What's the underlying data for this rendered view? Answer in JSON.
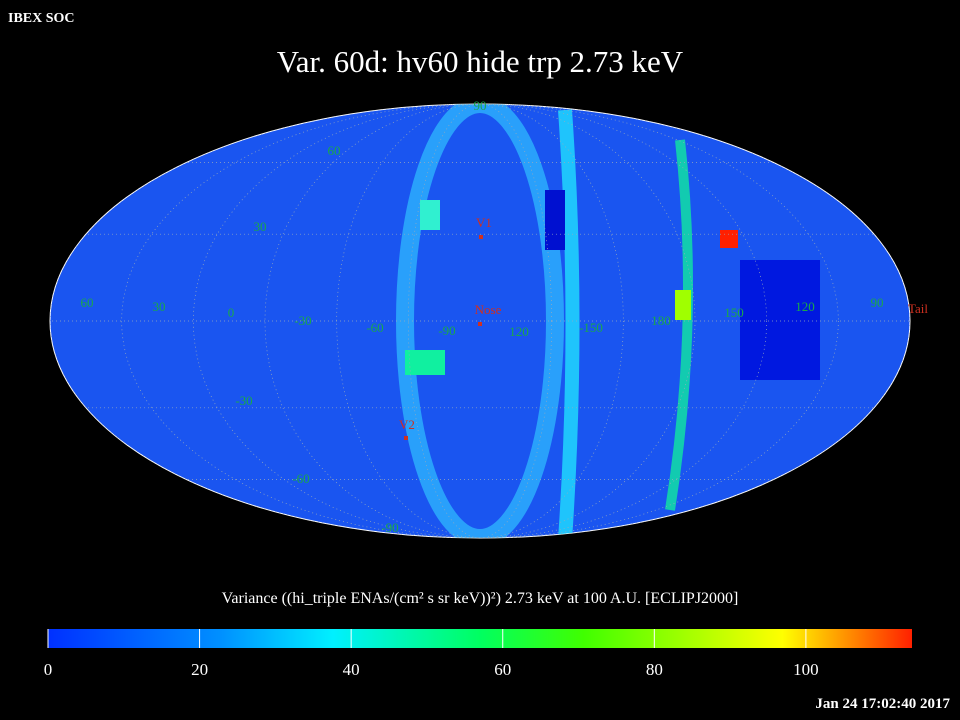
{
  "header": {
    "corner": "IBEX SOC",
    "title": "Var. 60d: hv60 hide trp 2.73 keV",
    "timestamp": "Jan 24 17:02:40 2017"
  },
  "map": {
    "latitude_labels": [
      "90",
      "60",
      "30",
      "-30",
      "-60",
      "-90"
    ],
    "longitude_labels": [
      "60",
      "30",
      "0",
      "-30",
      "-60",
      "-90",
      "120",
      "-150",
      "180",
      "150",
      "120",
      "90"
    ],
    "markers": [
      "V1",
      "Nose",
      "V2",
      "Tail"
    ]
  },
  "colorbar": {
    "label": "Variance ((hi_triple ENAs/(cm² s sr keV))²) 2.73 keV at 100 A.U. [ECLIPJ2000]",
    "lim": [
      0,
      114
    ],
    "ticks": [
      0,
      20,
      40,
      60,
      80,
      100
    ]
  }
}
